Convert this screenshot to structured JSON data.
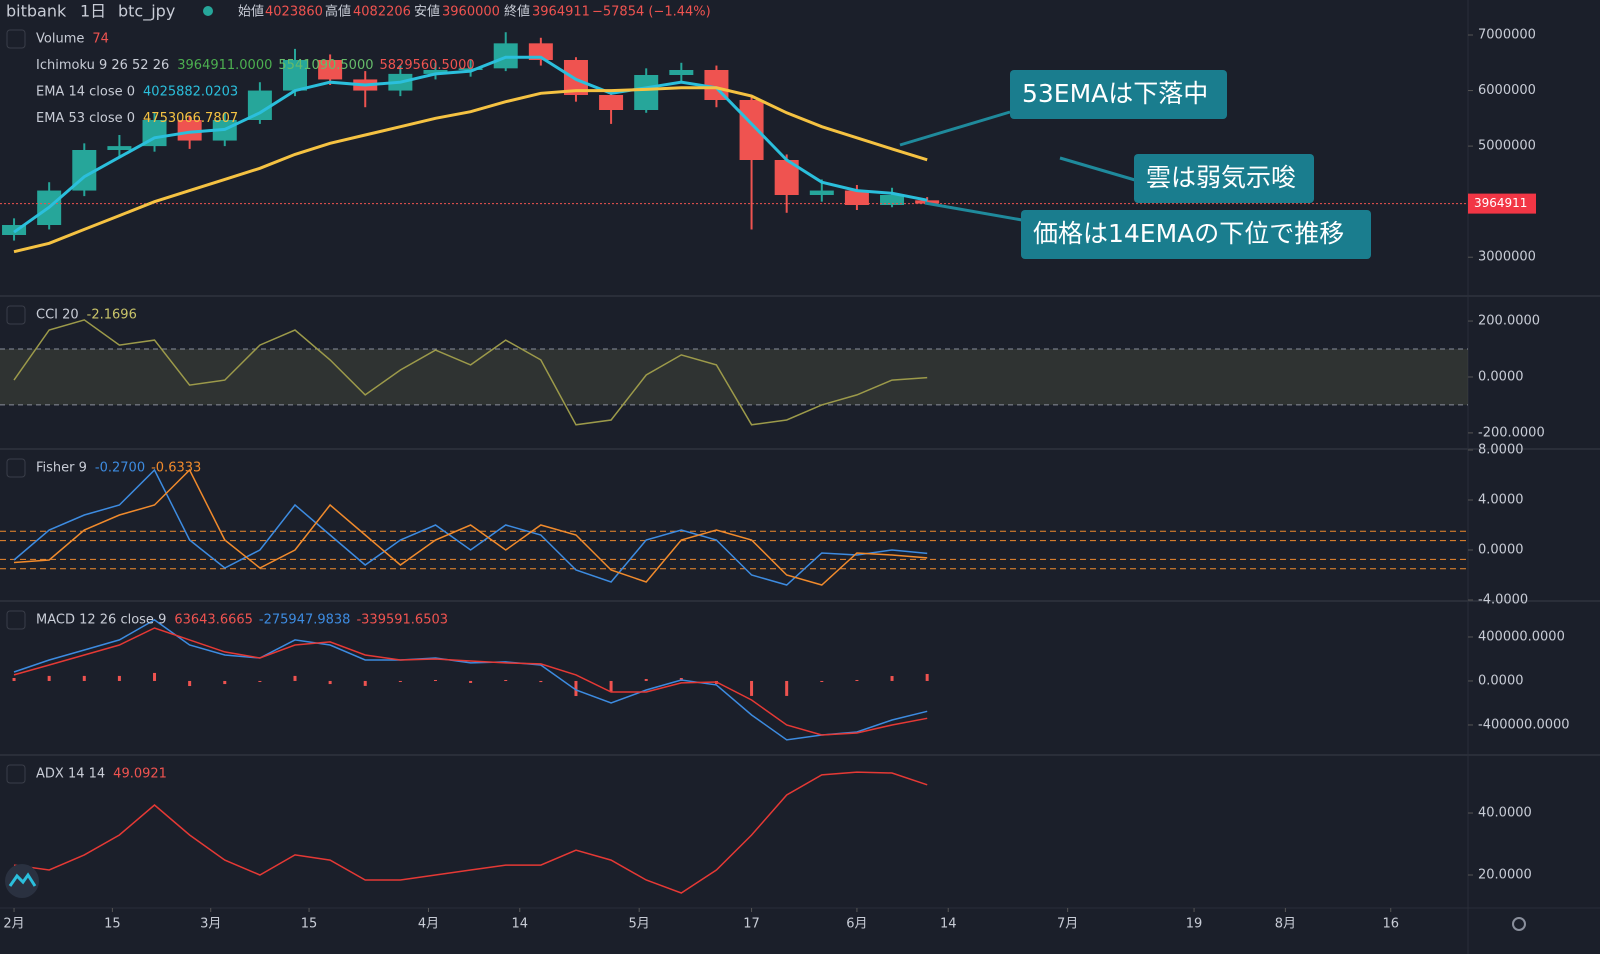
{
  "header": {
    "exchange": "bitbank",
    "interval": "1日",
    "symbol": "btc_jpy",
    "open_label": "始値",
    "high_label": "高値",
    "low_label": "安値",
    "close_label": "終値",
    "change": "−57854 (−1.44%)"
  },
  "annotations": [
    "53EMAは下落中",
    "雲は弱気示唆",
    "価格は14EMAの下位で推移"
  ],
  "chart_data": [
    {
      "type": "candlestick",
      "x": [
        0,
        5,
        10,
        15,
        20,
        25,
        30,
        35,
        40,
        45,
        50,
        55,
        60,
        65,
        70,
        75,
        80,
        85,
        90,
        95,
        100,
        105,
        110,
        115,
        120,
        125,
        130
      ],
      "xlim": [
        -2,
        207
      ],
      "xticks": [
        {
          "value": 0,
          "label": "2月"
        },
        {
          "value": 14,
          "label": "15"
        },
        {
          "value": 28,
          "label": "3月"
        },
        {
          "value": 42,
          "label": "15"
        },
        {
          "value": 59,
          "label": "4月"
        },
        {
          "value": 72,
          "label": "14"
        },
        {
          "value": 89,
          "label": "5月"
        },
        {
          "value": 105,
          "label": "17"
        },
        {
          "value": 120,
          "label": "6月"
        },
        {
          "value": 133,
          "label": "14"
        },
        {
          "value": 150,
          "label": "7月"
        },
        {
          "value": 168,
          "label": "19"
        },
        {
          "value": 181,
          "label": "8月"
        },
        {
          "value": 196,
          "label": "16"
        }
      ],
      "open": [
        3400000,
        3580000,
        4200000,
        4930000,
        5000000,
        5470000,
        5100000,
        5470000,
        6000000,
        6550000,
        6200000,
        6000000,
        6300000,
        6370000,
        6400000,
        6850000,
        6550000,
        5920000,
        5650000,
        6280000,
        6370000,
        5830000,
        4750000,
        4120000,
        4200000,
        3940000,
        4023860
      ],
      "high": [
        3700000,
        4350000,
        5050000,
        5200000,
        5600000,
        5550000,
        5600000,
        6150000,
        6750000,
        6650000,
        6350000,
        6450000,
        6500000,
        6550000,
        7050000,
        6950000,
        6600000,
        6000000,
        6400000,
        6500000,
        6450000,
        5900000,
        4850000,
        4400000,
        4300000,
        4250000,
        4082206
      ],
      "low": [
        3300000,
        3500000,
        4100000,
        4800000,
        4900000,
        4950000,
        5000000,
        5400000,
        5900000,
        6100000,
        5700000,
        5900000,
        6200000,
        6250000,
        6350000,
        6450000,
        5800000,
        5400000,
        5600000,
        6150000,
        5700000,
        3500000,
        3800000,
        4000000,
        3850000,
        3900000,
        3960000
      ],
      "close": [
        3580000,
        4200000,
        4930000,
        5000000,
        5470000,
        5100000,
        5470000,
        6000000,
        6550000,
        6200000,
        6000000,
        6300000,
        6370000,
        6400000,
        6850000,
        6550000,
        5920000,
        5650000,
        6280000,
        6370000,
        5830000,
        4750000,
        4120000,
        4200000,
        3940000,
        4120000,
        3964911
      ],
      "up_color": "#26a69a",
      "down_color": "#ef5350",
      "series": [
        {
          "name": "EMA 14 close 0",
          "color": "#2bbfdc",
          "values": [
            3450000,
            3900000,
            4450000,
            4800000,
            5150000,
            5250000,
            5300000,
            5600000,
            6000000,
            6150000,
            6100000,
            6150000,
            6300000,
            6350000,
            6600000,
            6600000,
            6200000,
            5950000,
            6050000,
            6150000,
            6050000,
            5400000,
            4750000,
            4350000,
            4200000,
            4150000,
            4025882.0203
          ]
        },
        {
          "name": "EMA 53 close 0",
          "color": "#f5c242",
          "values": [
            3100000,
            3250000,
            3500000,
            3750000,
            4000000,
            4200000,
            4400000,
            4600000,
            4850000,
            5050000,
            5200000,
            5350000,
            5500000,
            5620000,
            5800000,
            5950000,
            6000000,
            6000000,
            6020000,
            6050000,
            6050000,
            5900000,
            5600000,
            5350000,
            5150000,
            4950000,
            4753066.7807
          ]
        }
      ],
      "ylim": [
        2320000,
        7630000
      ],
      "yticks": [
        3000000,
        4000000,
        5000000,
        6000000,
        7000000
      ],
      "legend_rows": [
        {
          "name": "Volume",
          "values": [
            {
              "text": "74",
              "color": "#ef5350"
            }
          ]
        },
        {
          "name": "Ichimoku 9 26 52 26",
          "values": [
            {
              "text": "3964911.0000",
              "color": "#4caf50"
            },
            {
              "text": "5541090.5000",
              "color": "#66bb6a"
            },
            {
              "text": "5829560.5000",
              "color": "#ef5350"
            }
          ]
        },
        {
          "name": "EMA 14 close 0",
          "values": [
            {
              "text": "4025882.0203",
              "color": "#2bbfdc"
            }
          ]
        },
        {
          "name": "EMA 53 close 0",
          "values": [
            {
              "text": "4753066.7807",
              "color": "#f5c242"
            }
          ]
        }
      ]
    },
    {
      "type": "line",
      "series": [
        {
          "name": "CCI 20",
          "color": "#9c9a4a",
          "values": [
            -11,
            168,
            204,
            114,
            132,
            -29,
            -11,
            114,
            168,
            61,
            -64,
            25,
            96,
            43,
            132,
            61,
            -171,
            -154,
            7,
            79,
            43,
            -171,
            -154,
            -100,
            -64,
            -11,
            -2.1696
          ]
        }
      ],
      "bands": [
        100,
        -100
      ],
      "band_fill": "rgba(120,123,80,0.22)",
      "ylim": [
        -254,
        286
      ],
      "yticks": [
        {
          "value": 200,
          "label": "200.0000"
        },
        {
          "value": 0,
          "label": "0.0000"
        },
        {
          "value": -200,
          "label": "-200.0000"
        }
      ],
      "legend_rows": [
        {
          "name": "CCI 20",
          "values": [
            {
              "text": "-2.1696",
              "color": "#c9c46a"
            }
          ]
        }
      ]
    },
    {
      "type": "line",
      "series": [
        {
          "name": "Fisher",
          "color": "#3d8be0",
          "values": [
            -0.8,
            1.6,
            2.8,
            3.6,
            6.4,
            0.8,
            -1.44,
            0,
            3.6,
            1.2,
            -1.2,
            0.8,
            2,
            0,
            2,
            1.2,
            -1.6,
            -2.56,
            0.8,
            1.6,
            0.8,
            -2,
            -2.8,
            -0.24,
            -0.4,
            0,
            -0.27
          ]
        },
        {
          "name": "Trigger",
          "color": "#f08a2c",
          "values": [
            -1.0,
            -0.8,
            1.6,
            2.8,
            3.6,
            6.4,
            0.8,
            -1.44,
            0,
            3.6,
            1.2,
            -1.2,
            0.8,
            2,
            0,
            2,
            1.2,
            -1.6,
            -2.56,
            0.8,
            1.6,
            0.8,
            -2,
            -2.8,
            -0.24,
            -0.4,
            -0.6333
          ]
        }
      ],
      "levels": [
        1.5,
        0.75,
        -0.75,
        -1.5
      ],
      "level_color": "#f08a2c",
      "ylim": [
        -4,
        8
      ],
      "yticks": [
        {
          "value": 8,
          "label": "8.0000"
        },
        {
          "value": 4,
          "label": "4.0000"
        },
        {
          "value": 0,
          "label": "0.0000"
        },
        {
          "value": -4,
          "label": "-4.0000"
        }
      ],
      "legend_rows": [
        {
          "name": "Fisher 9",
          "values": [
            {
              "text": "-0.2700",
              "color": "#3d8be0"
            },
            {
              "text": "-0.6333",
              "color": "#f08a2c"
            }
          ]
        }
      ]
    },
    {
      "type": "line",
      "series": [
        {
          "name": "Histogram",
          "color": "#ef5350",
          "style": "histogram",
          "values": [
            27000,
            46000,
            46000,
            46000,
            73000,
            -46000,
            -28000,
            0,
            46000,
            -28000,
            -45000,
            0,
            9000,
            -18000,
            9000,
            -10000,
            -137000,
            -100000,
            18000,
            27000,
            -27000,
            -136000,
            -136000,
            0,
            9000,
            45000,
            63643.6665
          ]
        },
        {
          "name": "MACD",
          "color": "#3d8be0",
          "values": [
            82000,
            191000,
            282000,
            373000,
            555000,
            327000,
            236000,
            209000,
            373000,
            327000,
            191000,
            191000,
            209000,
            164000,
            173000,
            145000,
            -82000,
            -200000,
            -82000,
            9000,
            -36000,
            -309000,
            -536000,
            -491000,
            -464000,
            -355000,
            -275947.9838
          ]
        },
        {
          "name": "Signal",
          "color": "#e53935",
          "values": [
            55000,
            145000,
            236000,
            327000,
            482000,
            373000,
            264000,
            209000,
            327000,
            355000,
            236000,
            191000,
            200000,
            182000,
            164000,
            155000,
            55000,
            -100000,
            -100000,
            -18000,
            -9000,
            -173000,
            -400000,
            -491000,
            -473000,
            -400000,
            -339591.6503
          ]
        }
      ],
      "ylim": [
        -664000,
        718000
      ],
      "yticks": [
        {
          "value": 400000,
          "label": "400000.0000"
        },
        {
          "value": 0,
          "label": "0.0000"
        },
        {
          "value": -400000,
          "label": "-400000.0000"
        }
      ],
      "legend_rows": [
        {
          "name": "MACD 12 26 close 9",
          "values": [
            {
              "text": "63643.6665",
              "color": "#ef5350"
            },
            {
              "text": "-275947.9838",
              "color": "#3d8be0"
            },
            {
              "text": "-339591.6503",
              "color": "#ef5350"
            }
          ]
        }
      ]
    },
    {
      "type": "line",
      "series": [
        {
          "name": "ADX",
          "color": "#e53935",
          "values": [
            23.2,
            21.6,
            26.5,
            32.9,
            42.6,
            32.9,
            24.8,
            20,
            26.5,
            24.8,
            18.4,
            18.4,
            20,
            21.6,
            23.2,
            23.2,
            28,
            24.8,
            18.4,
            14.2,
            21.6,
            32.9,
            45.8,
            52.3,
            53.2,
            52.9,
            49.0921
          ]
        }
      ],
      "ylim": [
        9.35,
        58.4
      ],
      "yticks": [
        {
          "value": 40,
          "label": "40.0000"
        },
        {
          "value": 20,
          "label": "20.0000"
        }
      ],
      "legend_rows": [
        {
          "name": "ADX 14 14",
          "values": [
            {
              "text": "49.0921",
              "color": "#ef5350"
            }
          ]
        }
      ]
    }
  ]
}
